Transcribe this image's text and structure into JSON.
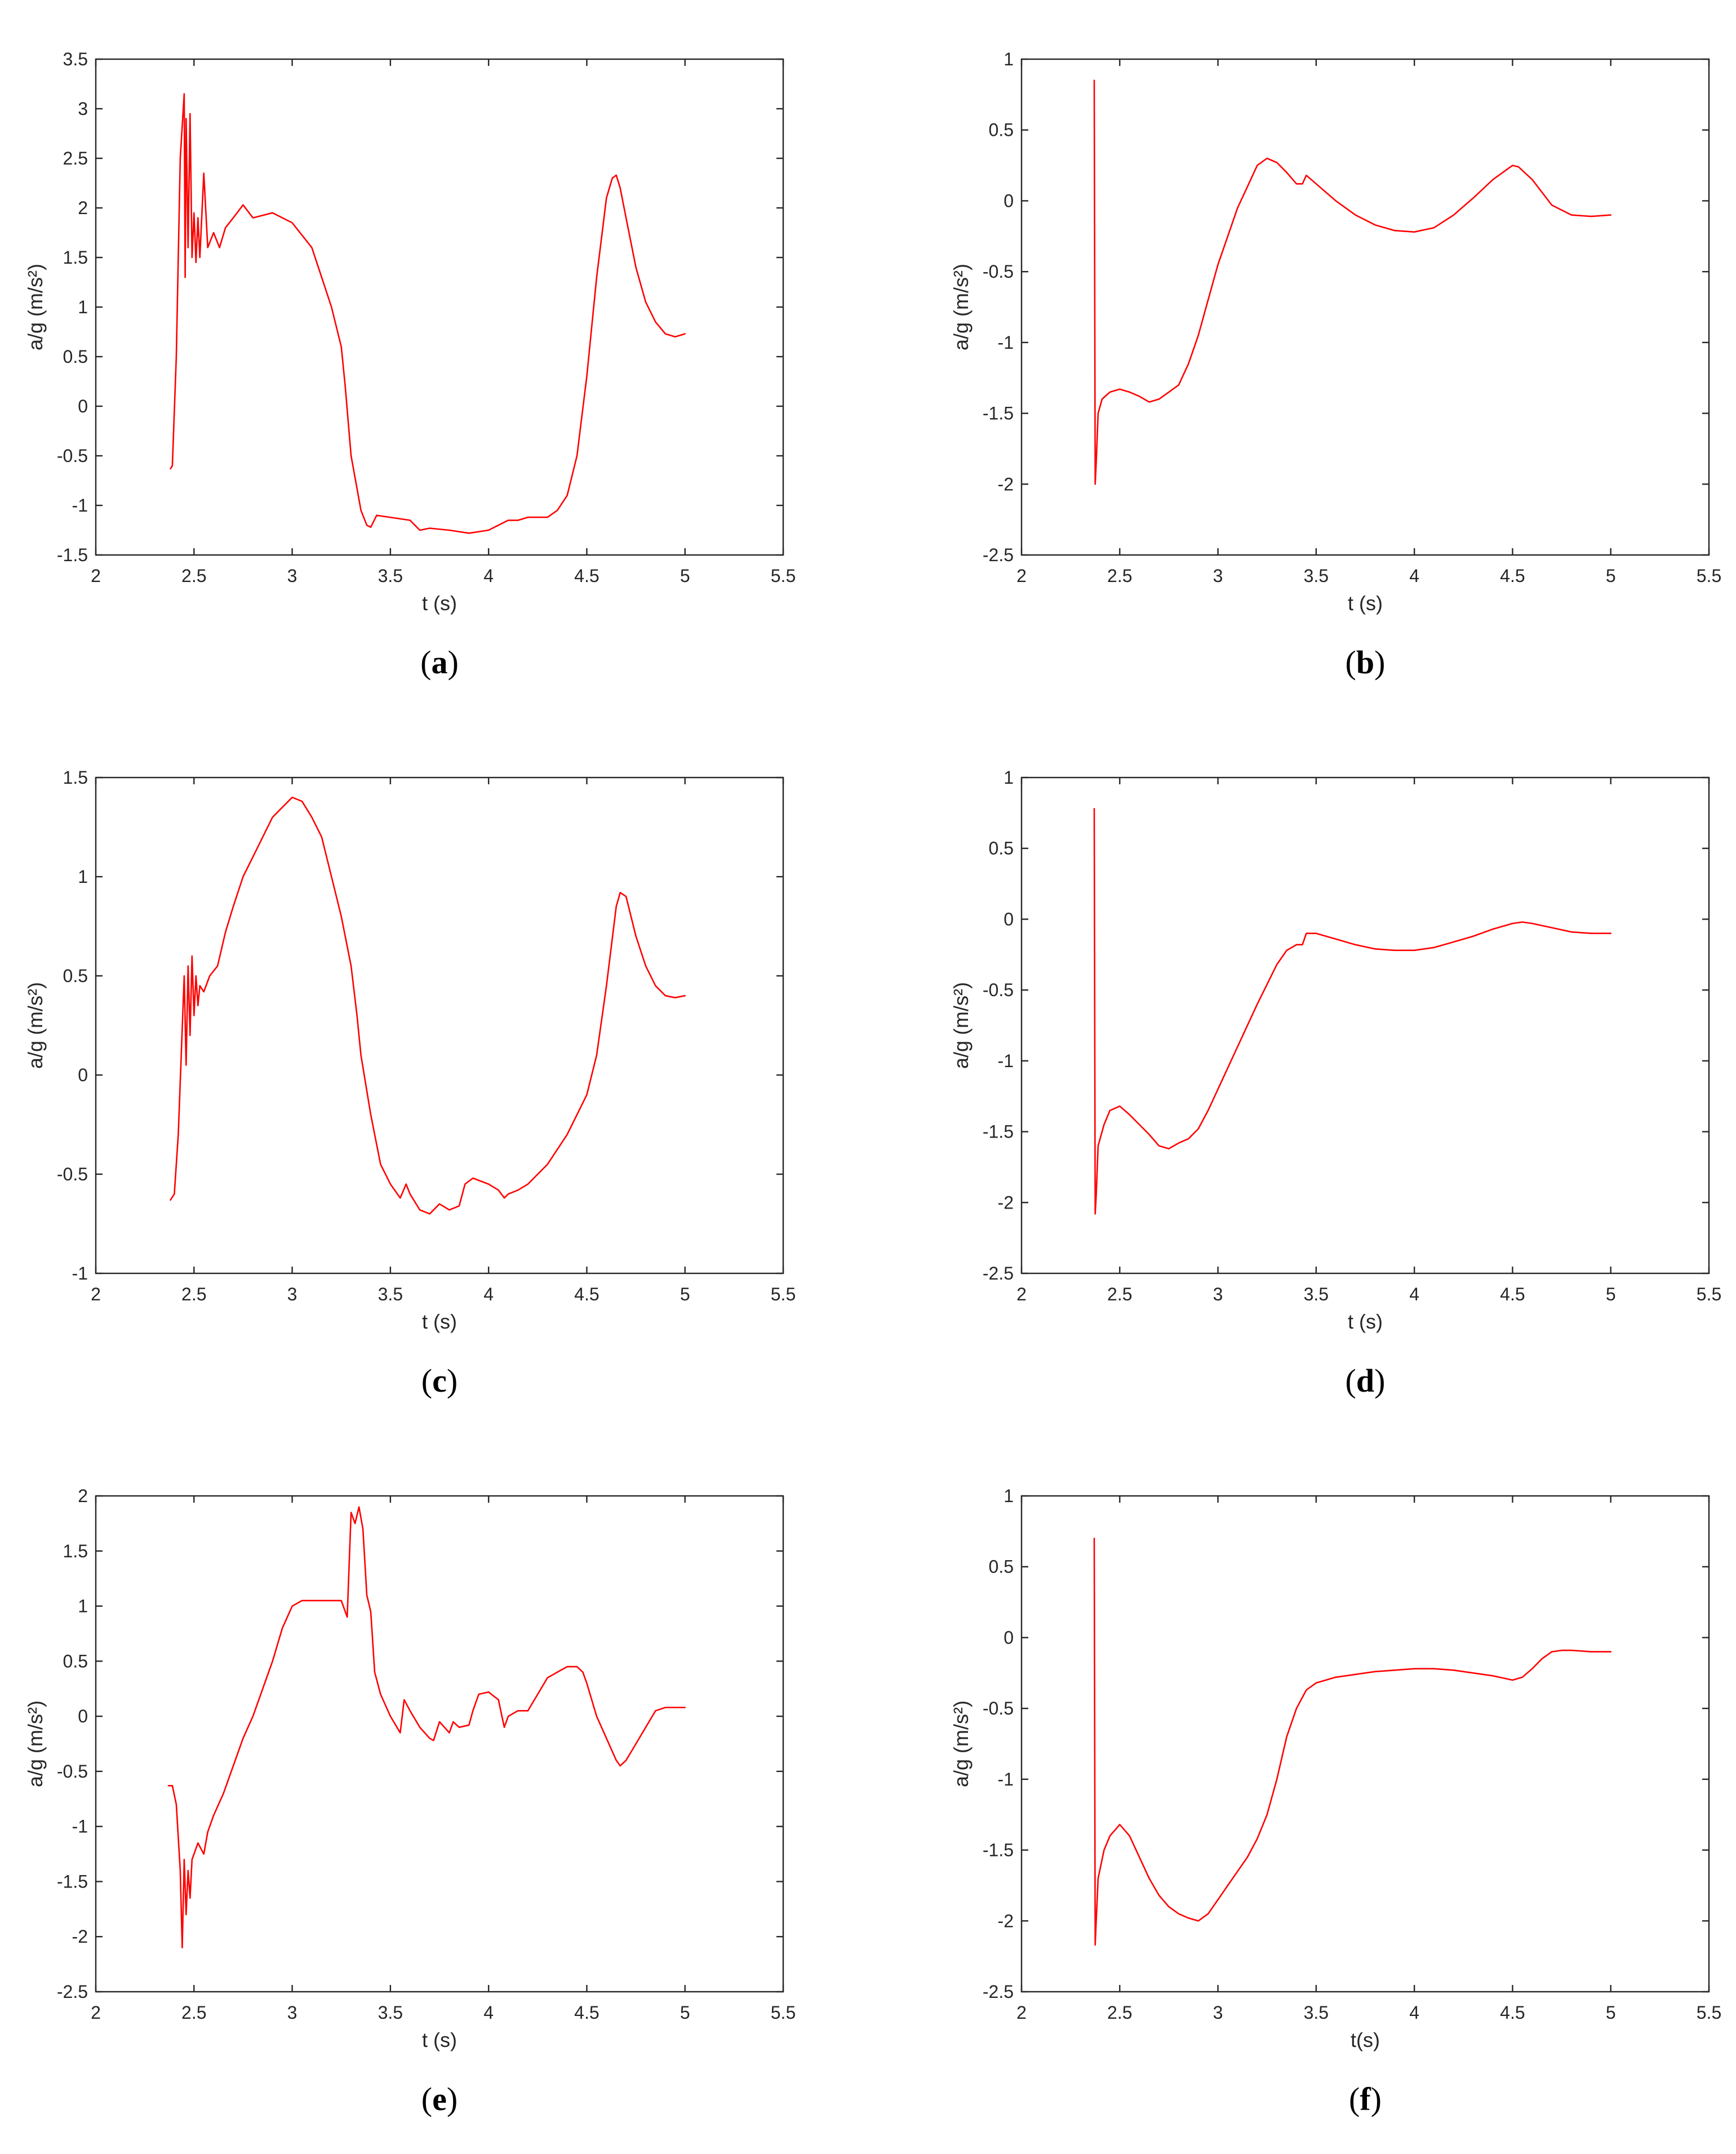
{
  "chart_data": [
    {
      "type": "line",
      "panel_label": "a",
      "xlabel": "t (s)",
      "ylabel": "a/g (m/s²)",
      "xlim": [
        2,
        5.5
      ],
      "ylim": [
        -1.5,
        3.5
      ],
      "xticks": [
        2,
        2.5,
        3,
        3.5,
        4,
        4.5,
        5,
        5.5
      ],
      "yticks": [
        -1.5,
        -1,
        -0.5,
        0,
        0.5,
        1,
        1.5,
        2,
        2.5,
        3,
        3.5
      ],
      "grid": false,
      "color": "#ff0000",
      "x": [
        2.38,
        2.39,
        2.41,
        2.43,
        2.45,
        2.455,
        2.46,
        2.47,
        2.48,
        2.49,
        2.5,
        2.51,
        2.52,
        2.53,
        2.55,
        2.57,
        2.6,
        2.63,
        2.66,
        2.7,
        2.75,
        2.8,
        2.9,
        3.0,
        3.1,
        3.15,
        3.2,
        3.25,
        3.27,
        3.3,
        3.35,
        3.38,
        3.4,
        3.43,
        3.6,
        3.65,
        3.7,
        3.8,
        3.9,
        4.0,
        4.05,
        4.1,
        4.15,
        4.2,
        4.3,
        4.35,
        4.4,
        4.45,
        4.5,
        4.55,
        4.6,
        4.63,
        4.65,
        4.67,
        4.7,
        4.75,
        4.8,
        4.85,
        4.9,
        4.95,
        5.0
      ],
      "y": [
        -0.63,
        -0.6,
        0.5,
        2.5,
        3.15,
        1.3,
        2.9,
        1.6,
        2.95,
        1.5,
        1.95,
        1.45,
        1.9,
        1.5,
        2.35,
        1.6,
        1.75,
        1.6,
        1.8,
        1.9,
        2.03,
        1.9,
        1.95,
        1.85,
        1.6,
        1.3,
        1.0,
        0.6,
        0.2,
        -0.5,
        -1.05,
        -1.2,
        -1.22,
        -1.1,
        -1.15,
        -1.25,
        -1.23,
        -1.25,
        -1.28,
        -1.25,
        -1.2,
        -1.15,
        -1.15,
        -1.12,
        -1.12,
        -1.05,
        -0.9,
        -0.5,
        0.3,
        1.3,
        2.1,
        2.3,
        2.33,
        2.2,
        1.9,
        1.4,
        1.05,
        0.85,
        0.73,
        0.7,
        0.73
      ]
    },
    {
      "type": "line",
      "panel_label": "b",
      "xlabel": "t (s)",
      "ylabel": "a/g (m/s²)",
      "xlim": [
        2,
        5.5
      ],
      "ylim": [
        -2.5,
        1
      ],
      "xticks": [
        2,
        2.5,
        3,
        3.5,
        4,
        4.5,
        5,
        5.5
      ],
      "yticks": [
        -2.5,
        -2,
        -1.5,
        -1,
        -0.5,
        0,
        0.5,
        1
      ],
      "grid": false,
      "color": "#ff0000",
      "x": [
        2.37,
        2.375,
        2.38,
        2.39,
        2.41,
        2.45,
        2.5,
        2.55,
        2.6,
        2.65,
        2.7,
        2.75,
        2.8,
        2.85,
        2.9,
        2.95,
        3.0,
        3.05,
        3.1,
        3.15,
        3.2,
        3.25,
        3.3,
        3.35,
        3.4,
        3.43,
        3.45,
        3.5,
        3.6,
        3.7,
        3.8,
        3.9,
        4.0,
        4.1,
        4.2,
        4.3,
        4.4,
        4.5,
        4.53,
        4.6,
        4.7,
        4.8,
        4.9,
        5.0
      ],
      "y": [
        0.85,
        -2.0,
        -1.85,
        -1.5,
        -1.4,
        -1.35,
        -1.33,
        -1.35,
        -1.38,
        -1.42,
        -1.4,
        -1.35,
        -1.3,
        -1.15,
        -0.95,
        -0.7,
        -0.45,
        -0.25,
        -0.05,
        0.1,
        0.25,
        0.3,
        0.27,
        0.2,
        0.12,
        0.12,
        0.18,
        0.12,
        0.0,
        -0.1,
        -0.17,
        -0.21,
        -0.22,
        -0.19,
        -0.1,
        0.02,
        0.15,
        0.25,
        0.24,
        0.15,
        -0.03,
        -0.1,
        -0.11,
        -0.1
      ]
    },
    {
      "type": "line",
      "panel_label": "c",
      "xlabel": "t (s)",
      "ylabel": "a/g (m/s²)",
      "xlim": [
        2,
        5.5
      ],
      "ylim": [
        -1,
        1.5
      ],
      "xticks": [
        2,
        2.5,
        3,
        3.5,
        4,
        4.5,
        5,
        5.5
      ],
      "yticks": [
        -1,
        -0.5,
        0,
        0.5,
        1,
        1.5
      ],
      "grid": false,
      "color": "#ff0000",
      "x": [
        2.38,
        2.4,
        2.42,
        2.45,
        2.46,
        2.47,
        2.48,
        2.49,
        2.5,
        2.51,
        2.52,
        2.53,
        2.55,
        2.58,
        2.62,
        2.66,
        2.7,
        2.75,
        2.8,
        2.85,
        2.9,
        2.95,
        3.0,
        3.05,
        3.1,
        3.15,
        3.2,
        3.25,
        3.3,
        3.33,
        3.35,
        3.4,
        3.45,
        3.5,
        3.55,
        3.58,
        3.6,
        3.65,
        3.7,
        3.75,
        3.8,
        3.85,
        3.88,
        3.92,
        4.0,
        4.05,
        4.08,
        4.1,
        4.15,
        4.2,
        4.3,
        4.4,
        4.5,
        4.55,
        4.6,
        4.65,
        4.67,
        4.7,
        4.75,
        4.8,
        4.85,
        4.9,
        4.95,
        5.0
      ],
      "y": [
        -0.63,
        -0.6,
        -0.3,
        0.5,
        0.05,
        0.55,
        0.2,
        0.6,
        0.3,
        0.5,
        0.35,
        0.45,
        0.42,
        0.5,
        0.55,
        0.72,
        0.85,
        1.0,
        1.1,
        1.2,
        1.3,
        1.35,
        1.4,
        1.38,
        1.3,
        1.2,
        1.0,
        0.8,
        0.55,
        0.3,
        0.1,
        -0.2,
        -0.45,
        -0.55,
        -0.62,
        -0.55,
        -0.6,
        -0.68,
        -0.7,
        -0.65,
        -0.68,
        -0.66,
        -0.55,
        -0.52,
        -0.55,
        -0.58,
        -0.62,
        -0.6,
        -0.58,
        -0.55,
        -0.45,
        -0.3,
        -0.1,
        0.1,
        0.45,
        0.85,
        0.92,
        0.9,
        0.7,
        0.55,
        0.45,
        0.4,
        0.39,
        0.4
      ]
    },
    {
      "type": "line",
      "panel_label": "d",
      "xlabel": "t (s)",
      "ylabel": "a/g (m/s²)",
      "xlim": [
        2,
        5.5
      ],
      "ylim": [
        -2.5,
        1
      ],
      "xticks": [
        2,
        2.5,
        3,
        3.5,
        4,
        4.5,
        5,
        5.5
      ],
      "yticks": [
        -2.5,
        -2,
        -1.5,
        -1,
        -0.5,
        0,
        0.5,
        1
      ],
      "grid": false,
      "color": "#ff0000",
      "x": [
        2.37,
        2.375,
        2.38,
        2.39,
        2.42,
        2.45,
        2.5,
        2.55,
        2.6,
        2.65,
        2.7,
        2.75,
        2.8,
        2.85,
        2.9,
        2.95,
        3.0,
        3.1,
        3.2,
        3.3,
        3.35,
        3.4,
        3.43,
        3.45,
        3.5,
        3.6,
        3.7,
        3.8,
        3.9,
        4.0,
        4.1,
        4.2,
        4.3,
        4.4,
        4.5,
        4.55,
        4.6,
        4.7,
        4.8,
        4.9,
        5.0
      ],
      "y": [
        0.78,
        -2.08,
        -1.95,
        -1.6,
        -1.45,
        -1.35,
        -1.32,
        -1.38,
        -1.45,
        -1.52,
        -1.6,
        -1.62,
        -1.58,
        -1.55,
        -1.48,
        -1.35,
        -1.2,
        -0.9,
        -0.6,
        -0.32,
        -0.22,
        -0.18,
        -0.18,
        -0.1,
        -0.1,
        -0.14,
        -0.18,
        -0.21,
        -0.22,
        -0.22,
        -0.2,
        -0.16,
        -0.12,
        -0.07,
        -0.03,
        -0.02,
        -0.03,
        -0.06,
        -0.09,
        -0.1,
        -0.1
      ]
    },
    {
      "type": "line",
      "panel_label": "e",
      "xlabel": "t (s)",
      "ylabel": "a/g (m/s²)",
      "xlim": [
        2,
        5.5
      ],
      "ylim": [
        -2.5,
        2
      ],
      "xticks": [
        2,
        2.5,
        3,
        3.5,
        4,
        4.5,
        5,
        5.5
      ],
      "yticks": [
        -2.5,
        -2,
        -1.5,
        -1,
        -0.5,
        0,
        0.5,
        1,
        1.5,
        2
      ],
      "grid": false,
      "color": "#ff0000",
      "x": [
        2.37,
        2.39,
        2.41,
        2.43,
        2.44,
        2.45,
        2.46,
        2.47,
        2.48,
        2.49,
        2.5,
        2.52,
        2.55,
        2.57,
        2.6,
        2.65,
        2.7,
        2.75,
        2.8,
        2.85,
        2.9,
        2.95,
        3.0,
        3.05,
        3.1,
        3.2,
        3.25,
        3.28,
        3.3,
        3.32,
        3.34,
        3.36,
        3.38,
        3.4,
        3.42,
        3.45,
        3.5,
        3.55,
        3.57,
        3.6,
        3.65,
        3.7,
        3.72,
        3.75,
        3.8,
        3.82,
        3.85,
        3.9,
        3.92,
        3.95,
        4.0,
        4.05,
        4.08,
        4.1,
        4.15,
        4.2,
        4.25,
        4.3,
        4.35,
        4.4,
        4.45,
        4.48,
        4.5,
        4.55,
        4.6,
        4.65,
        4.67,
        4.7,
        4.75,
        4.8,
        4.85,
        4.9,
        4.95,
        5.0
      ],
      "y": [
        -0.63,
        -0.63,
        -0.8,
        -1.4,
        -2.1,
        -1.3,
        -1.8,
        -1.4,
        -1.65,
        -1.3,
        -1.25,
        -1.15,
        -1.25,
        -1.05,
        -0.9,
        -0.7,
        -0.45,
        -0.2,
        0.0,
        0.25,
        0.5,
        0.8,
        1.0,
        1.05,
        1.05,
        1.05,
        1.05,
        0.9,
        1.85,
        1.75,
        1.9,
        1.7,
        1.1,
        0.95,
        0.4,
        0.2,
        0.0,
        -0.15,
        0.15,
        0.05,
        -0.1,
        -0.2,
        -0.22,
        -0.05,
        -0.15,
        -0.05,
        -0.1,
        -0.08,
        0.05,
        0.2,
        0.22,
        0.15,
        -0.1,
        0.0,
        0.05,
        0.05,
        0.2,
        0.35,
        0.4,
        0.45,
        0.45,
        0.4,
        0.3,
        0.0,
        -0.2,
        -0.4,
        -0.45,
        -0.4,
        -0.25,
        -0.1,
        0.05,
        0.08,
        0.08,
        0.08
      ]
    },
    {
      "type": "line",
      "panel_label": "f",
      "xlabel": "t(s)",
      "ylabel": "a/g (m/s²)",
      "xlim": [
        2,
        5.5
      ],
      "ylim": [
        -2.5,
        1
      ],
      "xticks": [
        2,
        2.5,
        3,
        3.5,
        4,
        4.5,
        5,
        5.5
      ],
      "yticks": [
        -2.5,
        -2,
        -1.5,
        -1,
        -0.5,
        0,
        0.5,
        1
      ],
      "grid": false,
      "color": "#ff0000",
      "x": [
        2.37,
        2.375,
        2.38,
        2.39,
        2.42,
        2.45,
        2.5,
        2.55,
        2.6,
        2.65,
        2.7,
        2.75,
        2.8,
        2.85,
        2.9,
        2.95,
        3.0,
        3.05,
        3.1,
        3.15,
        3.2,
        3.25,
        3.3,
        3.35,
        3.4,
        3.45,
        3.5,
        3.6,
        3.7,
        3.8,
        3.9,
        4.0,
        4.1,
        4.2,
        4.3,
        4.4,
        4.5,
        4.55,
        4.6,
        4.65,
        4.7,
        4.75,
        4.8,
        4.9,
        5.0
      ],
      "y": [
        0.7,
        -2.17,
        -2.0,
        -1.7,
        -1.5,
        -1.4,
        -1.32,
        -1.4,
        -1.55,
        -1.7,
        -1.82,
        -1.9,
        -1.95,
        -1.98,
        -2.0,
        -1.95,
        -1.85,
        -1.75,
        -1.65,
        -1.55,
        -1.42,
        -1.25,
        -1.0,
        -0.7,
        -0.5,
        -0.37,
        -0.32,
        -0.28,
        -0.26,
        -0.24,
        -0.23,
        -0.22,
        -0.22,
        -0.23,
        -0.25,
        -0.27,
        -0.3,
        -0.28,
        -0.22,
        -0.15,
        -0.1,
        -0.09,
        -0.09,
        -0.1,
        -0.1
      ]
    }
  ]
}
